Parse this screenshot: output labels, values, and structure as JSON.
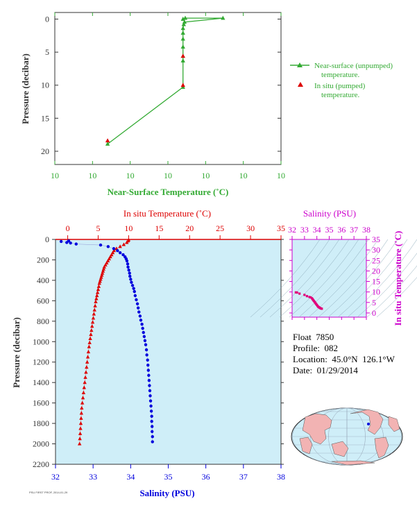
{
  "colors": {
    "green": "#33aa33",
    "red": "#dd0000",
    "blue": "#0000dd",
    "magenta": "#cc00cc",
    "axis_dark": "#333333",
    "plot_bg": "#cfeef8",
    "map_ocean": "#cfeef8",
    "map_land": "#f2b3b3"
  },
  "float_info": {
    "float": "Float  7850",
    "profile": "Profile:  082",
    "location": "Location:  45.0°N  126.1°W",
    "date": "Date:  01/29/2014"
  },
  "footer_text": "PSU FIRST PROF, 2014-01-29",
  "chart_data": [
    {
      "id": "near_surface",
      "type": "line",
      "xlabel": "Near-Surface Temperature (˚C)",
      "ylabel": "Pressure (decibar)",
      "x_tick_labels": [
        "10",
        "10",
        "10",
        "10",
        "10",
        "10",
        "10"
      ],
      "y_ticks": [
        0,
        5,
        10,
        15,
        20
      ],
      "ylim": [
        22,
        -1
      ],
      "legend_position": "right",
      "series": [
        {
          "name": "Near-surface (unpumped) temperature.",
          "marker": "triangle",
          "connected": true,
          "points": [
            [
              10.04,
              0.0
            ],
            [
              10.046,
              -0.15
            ],
            [
              10.146,
              -0.15
            ],
            [
              10.044,
              0.45
            ],
            [
              10.042,
              0.8
            ],
            [
              10.04,
              1.4
            ],
            [
              10.04,
              2.1
            ],
            [
              10.04,
              3.0
            ],
            [
              10.04,
              4.2
            ],
            [
              10.04,
              5.6
            ],
            [
              10.04,
              6.3
            ],
            [
              10.04,
              10.3
            ],
            [
              9.84,
              18.9
            ]
          ]
        },
        {
          "name": "In situ (pumped) temperature.",
          "marker": "triangle",
          "connected": false,
          "points": [
            [
              10.04,
              5.6
            ],
            [
              10.04,
              10.0
            ],
            [
              9.84,
              18.4
            ]
          ]
        }
      ]
    },
    {
      "id": "profile",
      "type": "scatter",
      "title": "In situ Temperature (˚C)",
      "xlabel": "Salinity (PSU)",
      "ylabel": "Pressure (decibar)",
      "temperature_ticks": [
        0,
        5,
        10,
        15,
        20,
        25,
        30,
        35
      ],
      "salinity_ticks": [
        32,
        33,
        34,
        35,
        36,
        37,
        38
      ],
      "pressure_ticks": [
        0,
        200,
        400,
        600,
        800,
        1000,
        1200,
        1400,
        1600,
        1800,
        2000,
        2200
      ],
      "temperature_range": [
        -2,
        35
      ],
      "salinity_range": [
        32,
        38
      ],
      "pressure_range": [
        0,
        2200
      ],
      "series": [
        {
          "name": "In situ Temperature (˚C)",
          "quantity": "temperature",
          "marker": "triangle",
          "points": [
            [
              10.0,
              5
            ],
            [
              9.9,
              15
            ],
            [
              9.7,
              30
            ],
            [
              9.2,
              50
            ],
            [
              8.6,
              70
            ],
            [
              8.0,
              90
            ],
            [
              7.6,
              110
            ],
            [
              7.4,
              130
            ],
            [
              7.2,
              150
            ],
            [
              7.0,
              170
            ],
            [
              6.8,
              190
            ],
            [
              6.6,
              210
            ],
            [
              6.4,
              230
            ],
            [
              6.2,
              250
            ],
            [
              6.0,
              270
            ],
            [
              5.9,
              290
            ],
            [
              5.8,
              310
            ],
            [
              5.7,
              330
            ],
            [
              5.6,
              350
            ],
            [
              5.5,
              370
            ],
            [
              5.4,
              390
            ],
            [
              5.3,
              410
            ],
            [
              5.2,
              430
            ],
            [
              5.1,
              460
            ],
            [
              5.0,
              490
            ],
            [
              4.9,
              520
            ],
            [
              4.8,
              550
            ],
            [
              4.7,
              580
            ],
            [
              4.6,
              610
            ],
            [
              4.5,
              650
            ],
            [
              4.4,
              690
            ],
            [
              4.3,
              730
            ],
            [
              4.2,
              770
            ],
            [
              4.1,
              810
            ],
            [
              4.0,
              850
            ],
            [
              3.9,
              890
            ],
            [
              3.8,
              930
            ],
            [
              3.7,
              970
            ],
            [
              3.6,
              1010
            ],
            [
              3.5,
              1050
            ],
            [
              3.4,
              1100
            ],
            [
              3.3,
              1150
            ],
            [
              3.2,
              1200
            ],
            [
              3.1,
              1250
            ],
            [
              3.0,
              1300
            ],
            [
              2.9,
              1350
            ],
            [
              2.8,
              1400
            ],
            [
              2.7,
              1450
            ],
            [
              2.6,
              1500
            ],
            [
              2.5,
              1550
            ],
            [
              2.4,
              1600
            ],
            [
              2.3,
              1650
            ],
            [
              2.25,
              1700
            ],
            [
              2.2,
              1750
            ],
            [
              2.15,
              1800
            ],
            [
              2.1,
              1850
            ],
            [
              2.05,
              1900
            ],
            [
              2.0,
              1950
            ],
            [
              1.95,
              2000
            ]
          ]
        },
        {
          "name": "Salinity (PSU)",
          "quantity": "salinity",
          "marker": "circle",
          "points": [
            [
              32.15,
              20
            ],
            [
              32.3,
              30
            ],
            [
              32.35,
              15
            ],
            [
              32.4,
              35
            ],
            [
              32.55,
              45
            ],
            [
              33.2,
              55
            ],
            [
              33.4,
              70
            ],
            [
              33.55,
              90
            ],
            [
              33.65,
              110
            ],
            [
              33.72,
              130
            ],
            [
              33.8,
              150
            ],
            [
              33.85,
              170
            ],
            [
              33.88,
              190
            ],
            [
              33.9,
              210
            ],
            [
              33.92,
              240
            ],
            [
              33.93,
              270
            ],
            [
              33.95,
              300
            ],
            [
              33.97,
              330
            ],
            [
              33.98,
              360
            ],
            [
              34.0,
              390
            ],
            [
              34.02,
              420
            ],
            [
              34.05,
              450
            ],
            [
              34.08,
              480
            ],
            [
              34.1,
              510
            ],
            [
              34.12,
              550
            ],
            [
              34.15,
              590
            ],
            [
              34.18,
              630
            ],
            [
              34.2,
              670
            ],
            [
              34.22,
              710
            ],
            [
              34.25,
              750
            ],
            [
              34.27,
              790
            ],
            [
              34.3,
              830
            ],
            [
              34.32,
              870
            ],
            [
              34.34,
              910
            ],
            [
              34.36,
              950
            ],
            [
              34.38,
              990
            ],
            [
              34.4,
              1030
            ],
            [
              34.42,
              1080
            ],
            [
              34.43,
              1130
            ],
            [
              34.45,
              1180
            ],
            [
              34.46,
              1230
            ],
            [
              34.47,
              1280
            ],
            [
              34.48,
              1330
            ],
            [
              34.49,
              1380
            ],
            [
              34.5,
              1430
            ],
            [
              34.51,
              1480
            ],
            [
              34.52,
              1530
            ],
            [
              34.53,
              1580
            ],
            [
              34.54,
              1630
            ],
            [
              34.55,
              1680
            ],
            [
              34.56,
              1730
            ],
            [
              34.56,
              1780
            ],
            [
              34.57,
              1830
            ],
            [
              34.57,
              1880
            ],
            [
              34.58,
              1930
            ],
            [
              34.58,
              1980
            ]
          ]
        }
      ]
    },
    {
      "id": "ts",
      "type": "scatter",
      "xlabel": "Salinity (PSU)",
      "ylabel": "In situ Temperature (˚C)",
      "x_ticks": [
        32,
        33,
        34,
        35,
        36,
        37,
        38
      ],
      "y_ticks": [
        0,
        5,
        10,
        15,
        20,
        25,
        30,
        35
      ],
      "xlim": [
        32,
        38
      ],
      "ylim": [
        -2,
        35
      ],
      "series": [
        {
          "name": "T-S",
          "marker": "square",
          "points": [
            [
              32.3,
              9.8
            ],
            [
              32.4,
              9.7
            ],
            [
              32.6,
              9.2
            ],
            [
              33.0,
              8.6
            ],
            [
              33.2,
              8.0
            ],
            [
              33.4,
              7.6
            ],
            [
              33.5,
              7.4
            ],
            [
              33.6,
              7.0
            ],
            [
              33.65,
              6.6
            ],
            [
              33.7,
              6.2
            ],
            [
              33.75,
              5.8
            ],
            [
              33.8,
              5.4
            ],
            [
              33.85,
              5.0
            ],
            [
              33.9,
              4.6
            ],
            [
              33.95,
              4.2
            ],
            [
              34.0,
              3.8
            ],
            [
              34.05,
              3.4
            ],
            [
              34.1,
              3.0
            ],
            [
              34.15,
              2.8
            ],
            [
              34.2,
              2.6
            ],
            [
              34.25,
              2.4
            ],
            [
              34.3,
              2.2
            ],
            [
              34.35,
              2.1
            ],
            [
              34.4,
              2.0
            ]
          ]
        }
      ]
    }
  ]
}
